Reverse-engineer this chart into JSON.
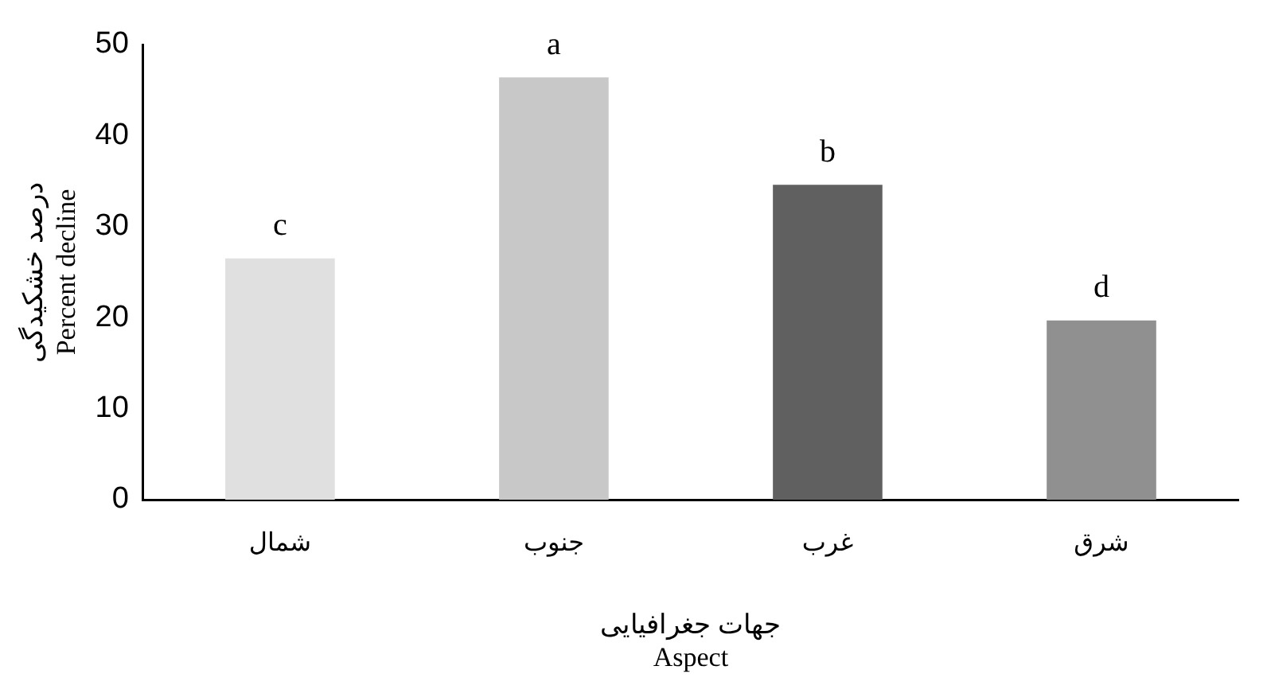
{
  "chart_data": {
    "type": "bar",
    "xlabel": "جهات جغرافیایی\nAspect",
    "ylabel": "درصد خشکیدگی\nPercent decline",
    "categories": [
      "شمال",
      "جنوب",
      "غرب",
      "شرق"
    ],
    "values": [
      26.5,
      46.4,
      34.6,
      19.7
    ],
    "colors": [
      "#e0e0e0",
      "#c8c8c8",
      "#606060",
      "#909090"
    ],
    "ylim": [
      0,
      50
    ],
    "yticks": [
      0,
      10,
      20,
      30,
      40,
      50
    ],
    "grid": false,
    "legend": false,
    "annotations": [
      {
        "text": "c",
        "x": "شمال",
        "y": 26.5
      },
      {
        "text": "a",
        "x": "جنوب",
        "y": 46.4
      },
      {
        "text": "b",
        "x": "غرب",
        "y": 34.6
      },
      {
        "text": "d",
        "x": "شرق",
        "y": 19.7
      }
    ]
  }
}
